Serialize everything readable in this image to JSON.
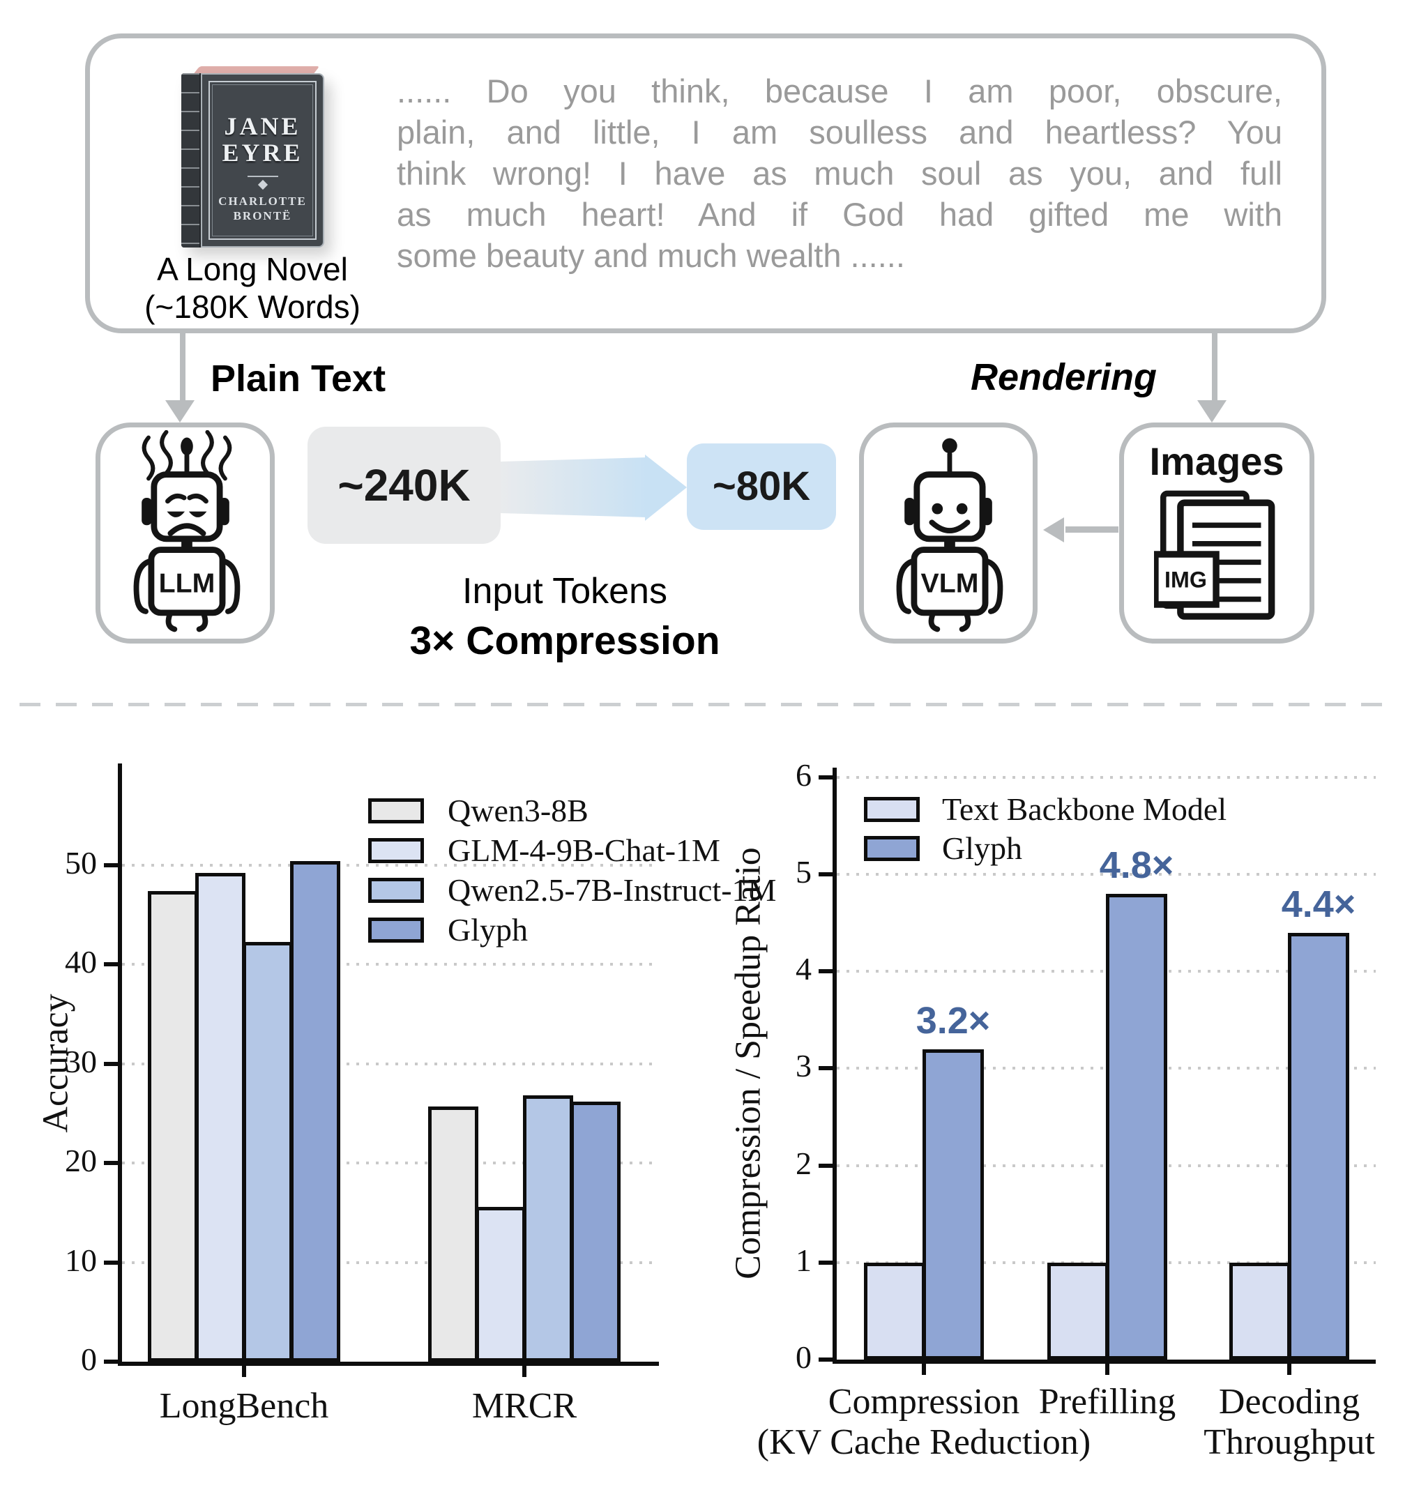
{
  "figure": {
    "top_panel": {
      "book": {
        "title_lines": [
          "JANE",
          "EYRE"
        ],
        "author_lines": [
          "CHARLOTTE",
          "BRONTË"
        ],
        "caption_lines": [
          "A Long Novel",
          "(~180K Words)"
        ]
      },
      "quote_lines": [
        "...... Do you think, because I am poor, obscure,",
        "plain, and little, I am soulless and heartless? You",
        "think wrong! I have as much soul as you, and full",
        "as much heart! And if God had gifted me with",
        "some beauty and much wealth ......"
      ]
    },
    "flow": {
      "plain_text_label": "Plain Text",
      "rendering_label": "Rendering",
      "llm_label": "LLM",
      "vlm_label": "VLM",
      "images_label": "Images",
      "img_badge_label": "IMG",
      "tokens_before": "~240K",
      "tokens_after": "~80K",
      "input_tokens_label": "Input Tokens",
      "compression_label": "3× Compression"
    }
  },
  "colors": {
    "panel_border": "#b9bcbe",
    "arrow_gray": "#b9bcbe",
    "quote_text": "#9a9a9a",
    "token_box_gray": "#e9eaeb",
    "token_box_blue": "#cde3f5",
    "bar_outline": "#0d0d0d",
    "value_label_blue": "#45649a",
    "gridline": "#c9c9c9"
  },
  "chart_data": [
    {
      "type": "bar",
      "title": "",
      "xlabel": "",
      "ylabel": "Accuracy",
      "categories": [
        [
          "LongBench"
        ],
        [
          "MRCR"
        ]
      ],
      "series": [
        {
          "name": "Qwen3-8B",
          "color": "#e8e8e8",
          "values": [
            47.4,
            25.7
          ]
        },
        {
          "name": "GLM-4-9B-Chat-1M",
          "color": "#dce3f3",
          "values": [
            49.2,
            15.6
          ]
        },
        {
          "name": "Qwen2.5-7B-Instruct-1M",
          "color": "#b4c7e6",
          "values": [
            42.3,
            26.8
          ]
        },
        {
          "name": "Glyph",
          "color": "#8fa5d4",
          "values": [
            50.4,
            26.2
          ]
        }
      ],
      "ylim": [
        0,
        60
      ],
      "yticks": [
        0,
        10,
        20,
        30,
        40,
        50
      ],
      "grid": "dotted-horizontal",
      "legend_position": "upper-right-inside"
    },
    {
      "type": "bar",
      "title": "",
      "xlabel": "",
      "ylabel": "Compression / Speedup Ratio",
      "categories": [
        [
          "Compression",
          "(KV Cache Reduction)"
        ],
        [
          "Prefilling"
        ],
        [
          "Decoding",
          "Throughput"
        ]
      ],
      "series": [
        {
          "name": "Text Backbone Model",
          "color": "#d8dff2",
          "values": [
            1.0,
            1.0,
            1.0
          ]
        },
        {
          "name": "Glyph",
          "color": "#8fa5d4",
          "values": [
            3.2,
            4.8,
            4.4
          ]
        }
      ],
      "bar_labels": {
        "series": "Glyph",
        "texts": [
          "3.2×",
          "4.8×",
          "4.4×"
        ],
        "color": "#45649a"
      },
      "ylim": [
        0,
        6
      ],
      "yticks": [
        0,
        1,
        2,
        3,
        4,
        5,
        6
      ],
      "grid": "dotted-horizontal",
      "legend_position": "upper-left-inside"
    }
  ]
}
